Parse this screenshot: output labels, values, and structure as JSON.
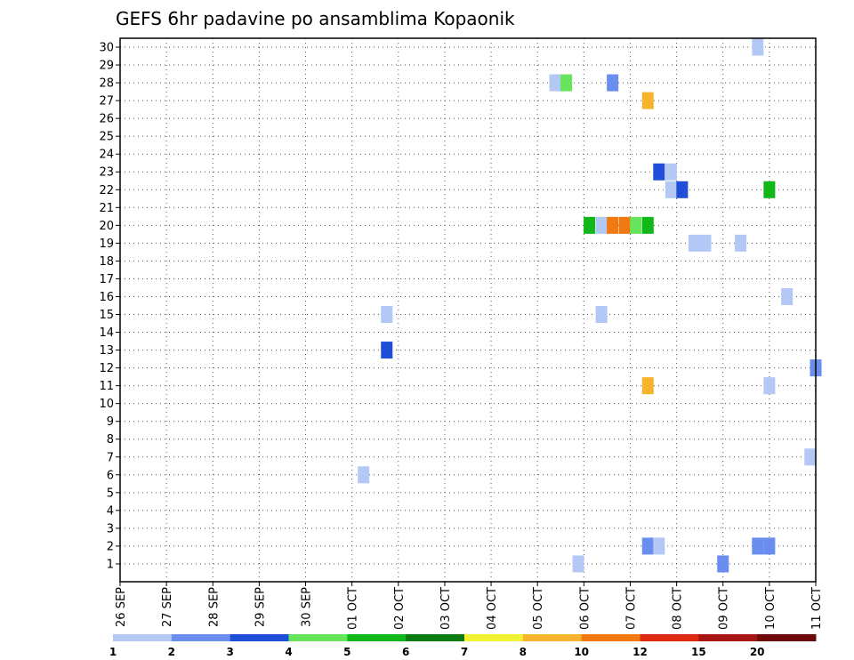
{
  "chart_data": {
    "type": "heatmap",
    "title": "GEFS 6hr padavine po ansamblima Kopaonik",
    "x_tick_labels": [
      "26 SEP",
      "27 SEP",
      "28 SEP",
      "29 SEP",
      "30 SEP",
      "01 OCT",
      "02 OCT",
      "03 OCT",
      "04 OCT",
      "05 OCT",
      "06 OCT",
      "07 OCT",
      "08 OCT",
      "09 OCT",
      "10 OCT",
      "11 OCT"
    ],
    "y_tick_labels": [
      "1",
      "2",
      "3",
      "4",
      "5",
      "6",
      "7",
      "8",
      "9",
      "10",
      "11",
      "12",
      "13",
      "14",
      "15",
      "16",
      "17",
      "18",
      "19",
      "20",
      "21",
      "22",
      "23",
      "24",
      "25",
      "26",
      "27",
      "28",
      "29",
      "30"
    ],
    "x_start": "2024-09-26",
    "x_range_days": [
      0,
      15
    ],
    "y_range": [
      0,
      30.5
    ],
    "grid": true,
    "legend_placement": "bottom",
    "legend": {
      "labels": [
        "1",
        "2",
        "3",
        "4",
        "5",
        "6",
        "7",
        "8",
        "10",
        "12",
        "15",
        "20"
      ],
      "colors": [
        "#b4c8f5",
        "#6a8ef0",
        "#1f4fd8",
        "#66e55c",
        "#12b81a",
        "#0b7a10",
        "#f2f235",
        "#f5b42b",
        "#f07a10",
        "#dd2a10",
        "#a81515",
        "#6e0a0a"
      ]
    },
    "cells": [
      {
        "day": 9.88,
        "member": 1,
        "color": "#b4c8f5"
      },
      {
        "day": 13.0,
        "member": 1,
        "color": "#6a8ef0"
      },
      {
        "day": 11.38,
        "member": 2,
        "color": "#6a8ef0"
      },
      {
        "day": 11.62,
        "member": 2,
        "color": "#b4c8f5"
      },
      {
        "day": 13.75,
        "member": 2,
        "color": "#6a8ef0"
      },
      {
        "day": 14.0,
        "member": 2,
        "color": "#6a8ef0"
      },
      {
        "day": 5.25,
        "member": 6,
        "color": "#b4c8f5"
      },
      {
        "day": 14.88,
        "member": 7,
        "color": "#b4c8f5"
      },
      {
        "day": 11.38,
        "member": 11,
        "color": "#f5b42b"
      },
      {
        "day": 14.0,
        "member": 11,
        "color": "#b4c8f5"
      },
      {
        "day": 15.0,
        "member": 12,
        "color": "#6a8ef0"
      },
      {
        "day": 5.75,
        "member": 13,
        "color": "#1f4fd8"
      },
      {
        "day": 5.75,
        "member": 15,
        "color": "#b4c8f5"
      },
      {
        "day": 10.38,
        "member": 15,
        "color": "#b4c8f5"
      },
      {
        "day": 14.38,
        "member": 16,
        "color": "#b4c8f5"
      },
      {
        "day": 12.38,
        "member": 19,
        "color": "#b4c8f5"
      },
      {
        "day": 12.62,
        "member": 19,
        "color": "#b4c8f5"
      },
      {
        "day": 13.38,
        "member": 19,
        "color": "#b4c8f5"
      },
      {
        "day": 10.12,
        "member": 20,
        "color": "#12b81a"
      },
      {
        "day": 10.38,
        "member": 20,
        "color": "#b4c8f5"
      },
      {
        "day": 10.62,
        "member": 20,
        "color": "#f07a10"
      },
      {
        "day": 10.88,
        "member": 20,
        "color": "#f07a10"
      },
      {
        "day": 11.12,
        "member": 20,
        "color": "#66e55c"
      },
      {
        "day": 11.38,
        "member": 20,
        "color": "#12b81a"
      },
      {
        "day": 11.88,
        "member": 22,
        "color": "#b4c8f5"
      },
      {
        "day": 12.12,
        "member": 22,
        "color": "#1f4fd8"
      },
      {
        "day": 14.0,
        "member": 22,
        "color": "#12b81a"
      },
      {
        "day": 11.62,
        "member": 23,
        "color": "#1f4fd8"
      },
      {
        "day": 11.88,
        "member": 23,
        "color": "#b4c8f5"
      },
      {
        "day": 11.38,
        "member": 27,
        "color": "#f5b42b"
      },
      {
        "day": 9.38,
        "member": 28,
        "color": "#b4c8f5"
      },
      {
        "day": 9.62,
        "member": 28,
        "color": "#66e55c"
      },
      {
        "day": 10.62,
        "member": 28,
        "color": "#6a8ef0"
      },
      {
        "day": 13.75,
        "member": 30,
        "color": "#b4c8f5"
      }
    ]
  }
}
